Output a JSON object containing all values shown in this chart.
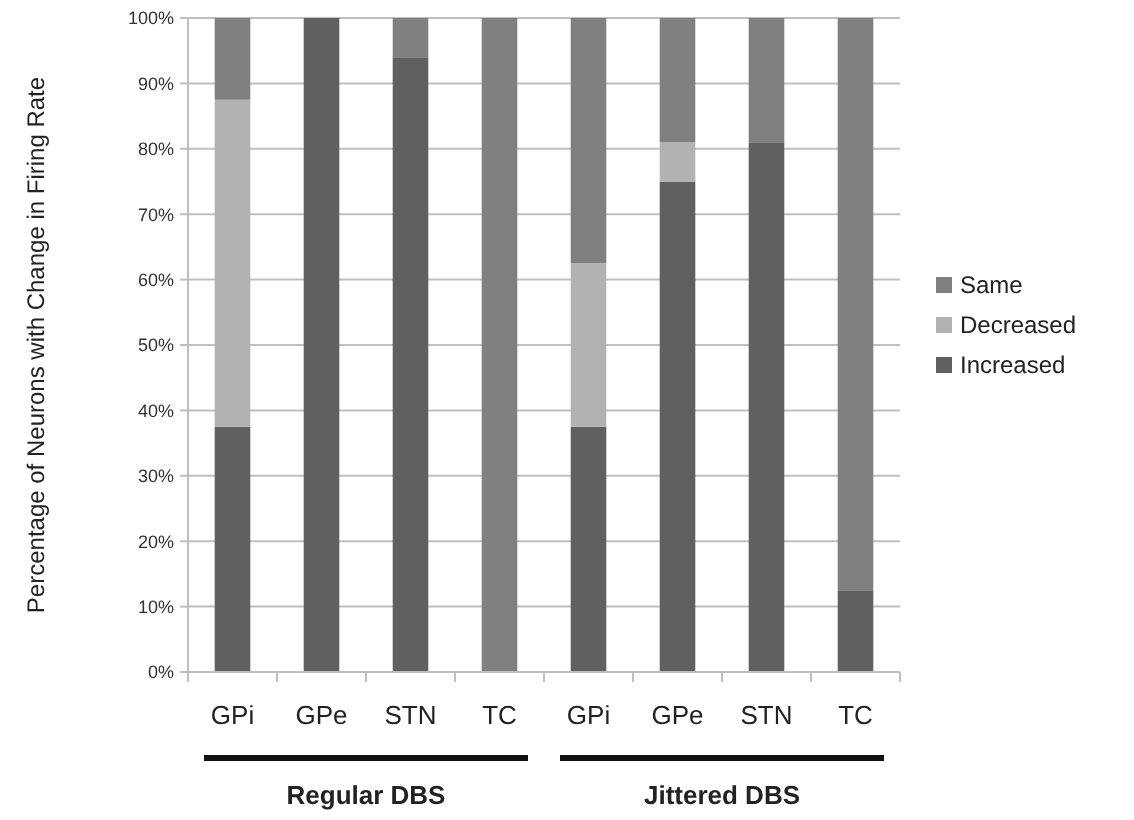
{
  "chart_data": {
    "type": "bar",
    "stacked": true,
    "ylabel": "Percentage of Neurons with Change in Firing Rate",
    "categories": [
      "GPi",
      "GPe",
      "STN",
      "TC",
      "GPi",
      "GPe",
      "STN",
      "TC"
    ],
    "series": [
      {
        "name": "Increased",
        "color": "#606060",
        "values": [
          37.5,
          100,
          94,
          0,
          37.5,
          75,
          81,
          12.5
        ]
      },
      {
        "name": "Decreased",
        "color": "#b2b2b2",
        "values": [
          50,
          0,
          0,
          0,
          25,
          6,
          0,
          0
        ]
      },
      {
        "name": "Same",
        "color": "#808080",
        "values": [
          12.5,
          0,
          6,
          100,
          37.5,
          19,
          19,
          87.5
        ]
      }
    ],
    "ylim": [
      0,
      100
    ],
    "yticks": [
      {
        "value": 0,
        "label": "0%"
      },
      {
        "value": 10,
        "label": "10%"
      },
      {
        "value": 20,
        "label": "20%"
      },
      {
        "value": 30,
        "label": "30%"
      },
      {
        "value": 40,
        "label": "40%"
      },
      {
        "value": 50,
        "label": "50%"
      },
      {
        "value": 60,
        "label": "60%"
      },
      {
        "value": 70,
        "label": "70%"
      },
      {
        "value": 80,
        "label": "80%"
      },
      {
        "value": 90,
        "label": "90%"
      },
      {
        "value": 100,
        "label": "100%"
      }
    ],
    "grid": "y",
    "legend": "right",
    "annotations": [
      "Regular DBS",
      "Jittered DBS"
    ]
  }
}
